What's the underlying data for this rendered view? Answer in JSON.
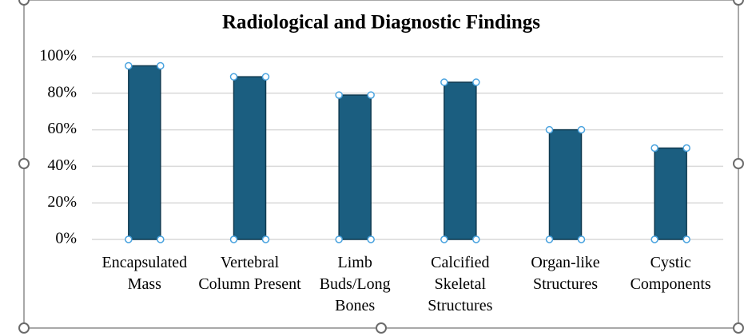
{
  "chart_data": {
    "type": "bar",
    "title": "Radiological and Diagnostic Findings",
    "categories": [
      "Encapsulated Mass",
      "Vertebral Column Present",
      "Limb Buds/Long Bones",
      "Calcified Skeletal Structures",
      "Organ-like Structures",
      "Cystic Components"
    ],
    "values": [
      95,
      89,
      79,
      86,
      60,
      50
    ],
    "color": "#1b5e80",
    "ylim": [
      0,
      100
    ],
    "yticks": [
      {
        "value": 0,
        "label": "0%"
      },
      {
        "value": 20,
        "label": "20%"
      },
      {
        "value": 40,
        "label": "40%"
      },
      {
        "value": 60,
        "label": "60%"
      },
      {
        "value": 80,
        "label": "80%"
      },
      {
        "value": 100,
        "label": "100%"
      }
    ],
    "grid": true
  }
}
